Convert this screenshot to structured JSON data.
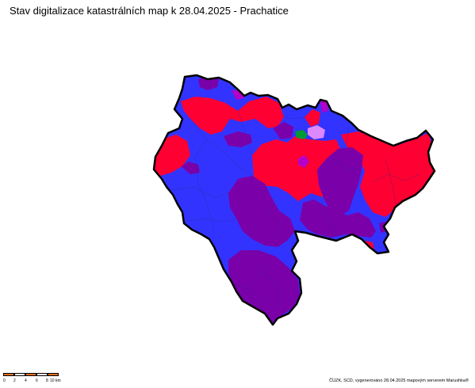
{
  "title": "Stav digitalizace katastrálních map k 28.04.2025 - Prachatice",
  "colors": {
    "blue": "#3333ff",
    "red": "#ff0033",
    "purple": "#7a00aa",
    "magenta": "#b400c8",
    "green": "#009933",
    "lilac": "#dd88ff",
    "outline": "#000000",
    "scale_orange": "#e07020",
    "scale_white": "#ffffff"
  },
  "scale": {
    "labels": [
      "0",
      "2",
      "4",
      "6",
      "8",
      "10 km"
    ]
  },
  "credit": "ČÚZK, SCD, vygenerováno 28.04.2025 mapovým serverem Marushka®"
}
